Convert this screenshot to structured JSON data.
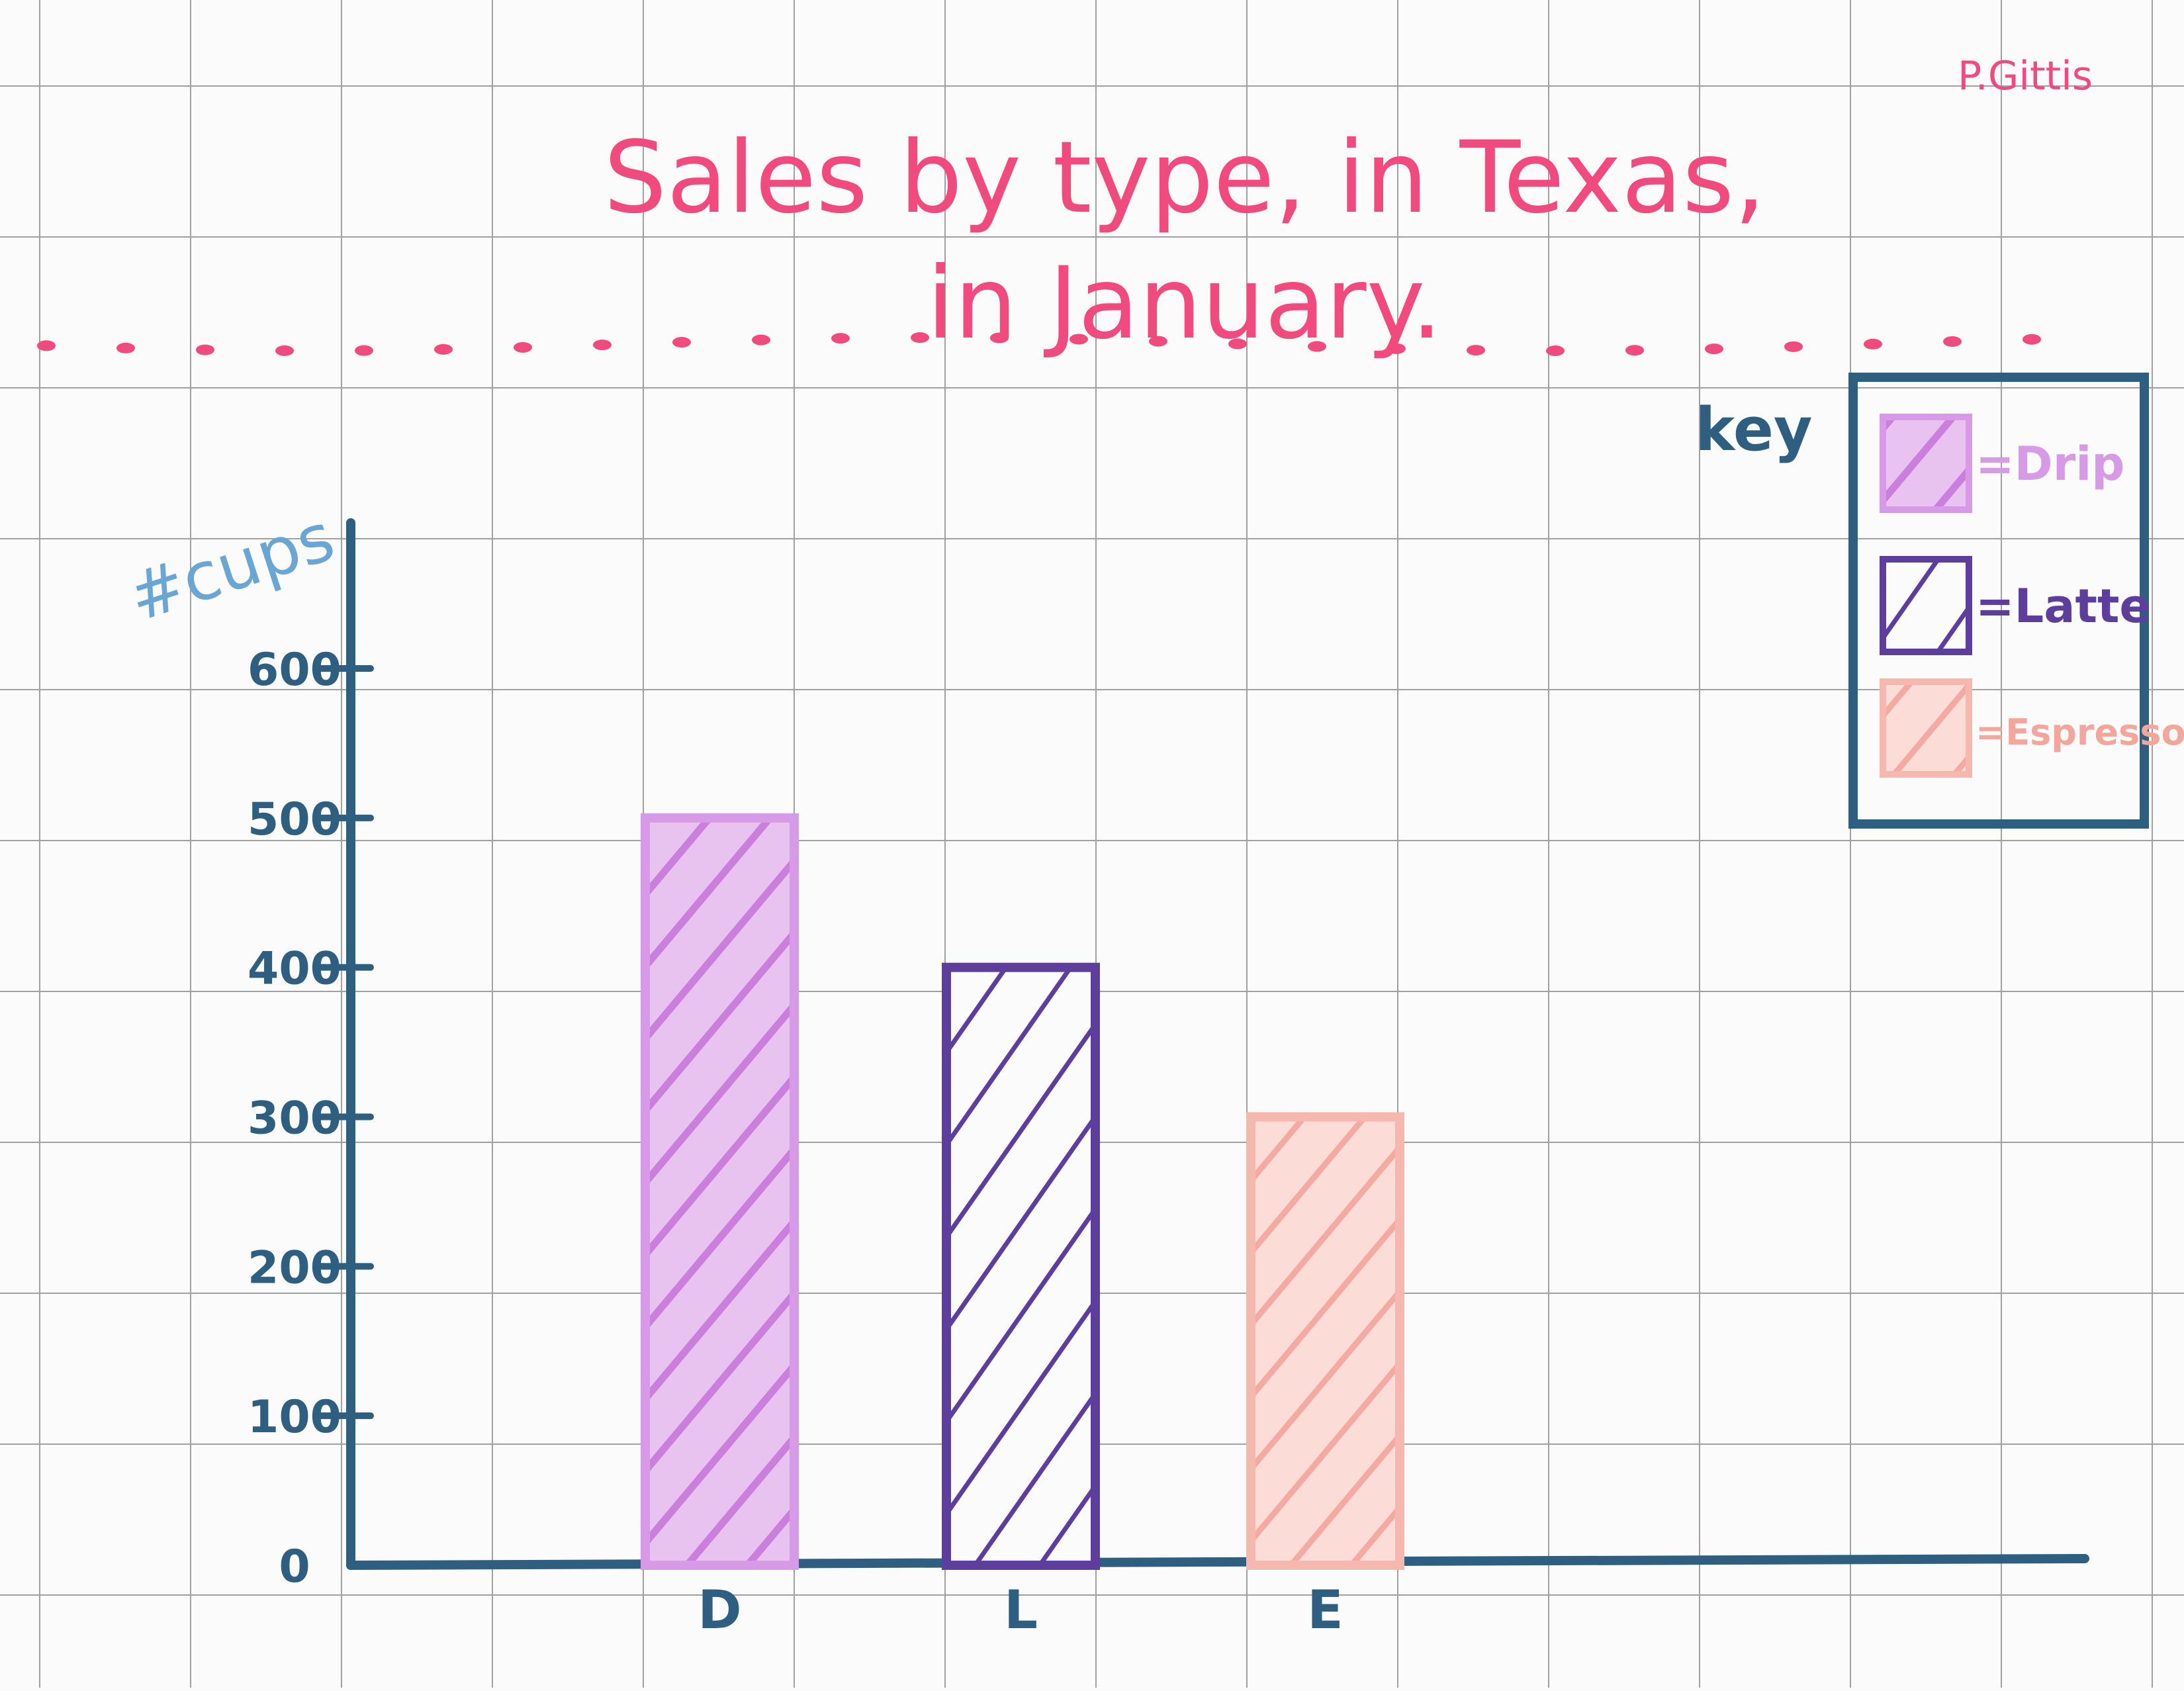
{
  "author": "P.Gittis",
  "colors": {
    "paper": "#fbfbfb",
    "grid": "#9a9a9a",
    "title": "#f04a7e",
    "axis": "#2e5e80",
    "ylabel": "#6aa6d4",
    "drip": "#d79ae6",
    "latte": "#5e3e9c",
    "espresso": "#f6b8ae"
  },
  "chart_data": {
    "type": "bar",
    "title": "Sales by type, in Texas,",
    "subtitle": "in January.",
    "xlabel": "",
    "ylabel": "#cups",
    "ylim": [
      0,
      600
    ],
    "yticks": [
      0,
      100,
      200,
      300,
      400,
      500,
      600
    ],
    "ytick_labels": [
      "0",
      "100",
      "200",
      "300",
      "400",
      "500",
      "600"
    ],
    "categories": [
      "D",
      "L",
      "E"
    ],
    "values": [
      500,
      400,
      300
    ],
    "bar_colors": [
      "#d79ae6",
      "#5e3e9c",
      "#f6b8ae"
    ],
    "grid": true,
    "legend": {
      "title": "key",
      "position": "top-right",
      "entries": [
        {
          "name": "=Drip",
          "color": "#d79ae6"
        },
        {
          "name": "=Latte",
          "color": "#5e3e9c"
        },
        {
          "name": "=Espresso",
          "color": "#f6b8ae"
        }
      ]
    }
  }
}
